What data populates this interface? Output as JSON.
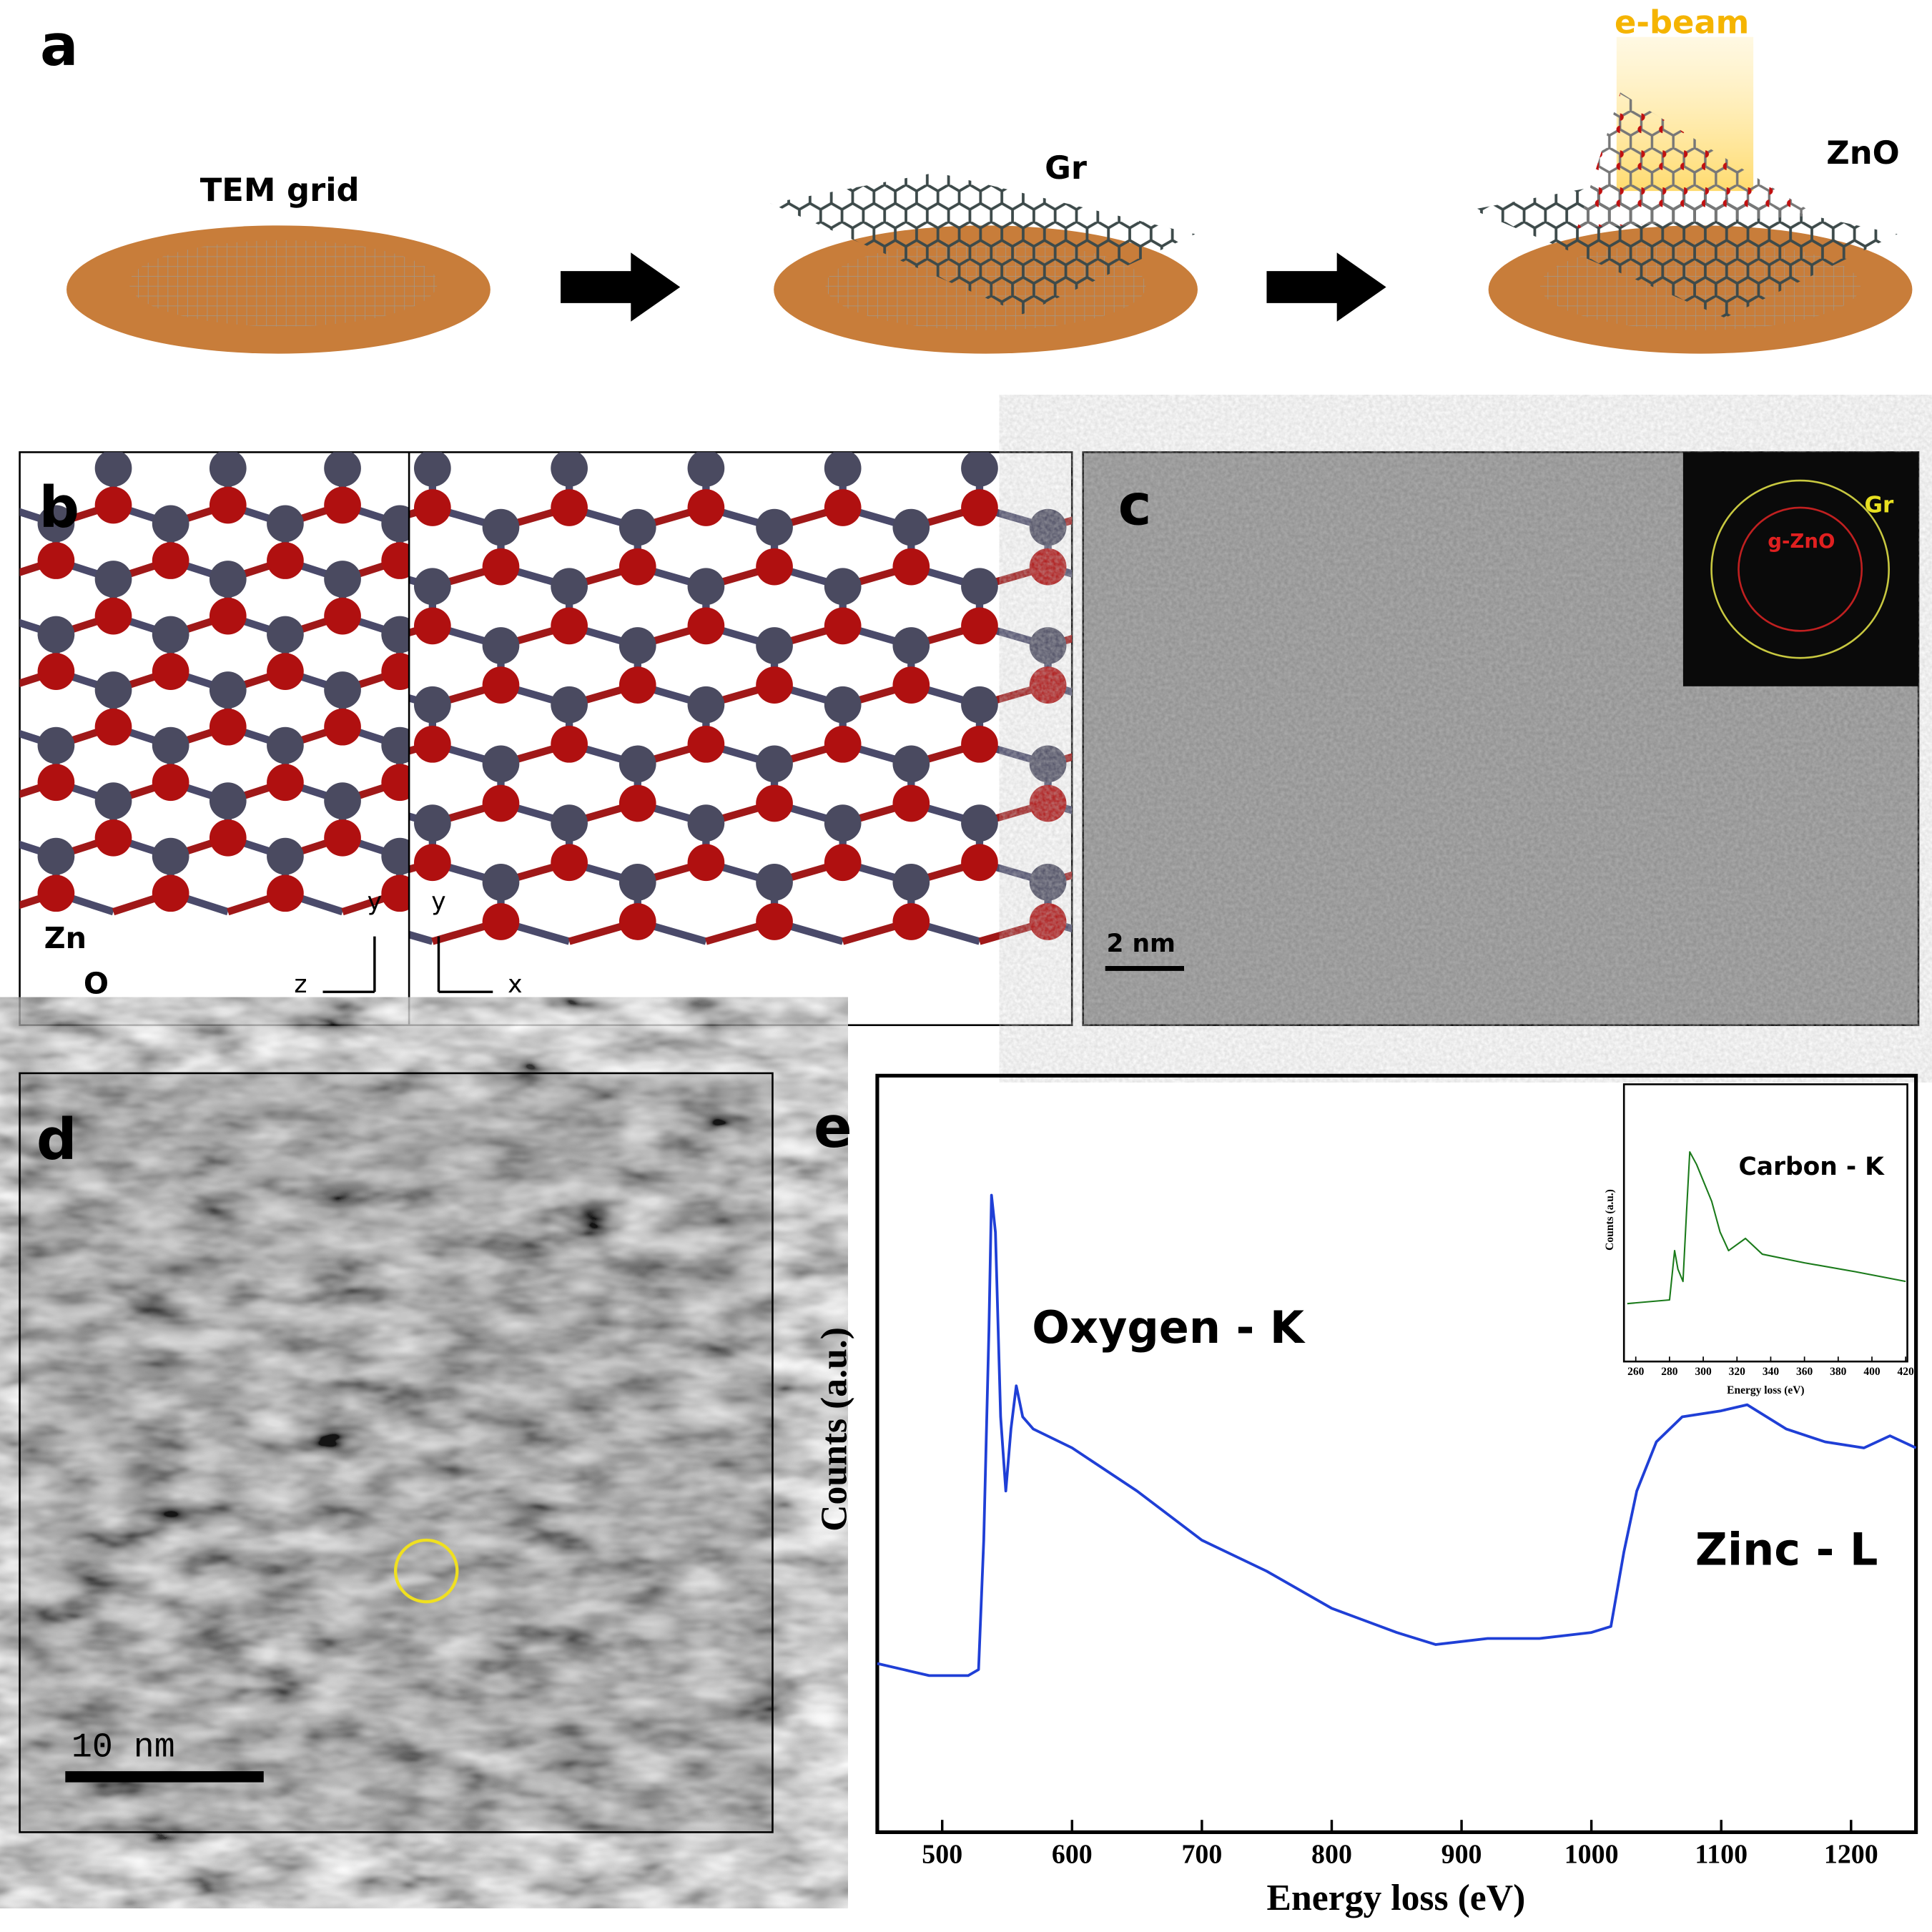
{
  "panel_a": {
    "label": "a",
    "tem_grid": "TEM grid",
    "gr": "Gr",
    "zno": "ZnO",
    "ebeam": "e-beam"
  },
  "panel_b": {
    "label": "b",
    "zn": "Zn",
    "o": "O",
    "axis_y_left": "y",
    "axis_z": "z",
    "axis_y_right": "y",
    "axis_x": "x"
  },
  "panel_c": {
    "label": "c",
    "inset_gr": "Gr",
    "inset_zno": "g-ZnO",
    "scale_bar": "2 nm"
  },
  "panel_d": {
    "label": "d",
    "scale_bar": "10 nm"
  },
  "panel_e": {
    "label": "e"
  },
  "chart_data": [
    {
      "type": "line",
      "x_label": "Energy loss (eV)",
      "y_label": "Counts (a.u.)",
      "annotations": [
        "Oxygen - K",
        "Zinc - L"
      ],
      "color": "#1f3fd6",
      "x": [
        450,
        470,
        490,
        520,
        528,
        532,
        536,
        538,
        541,
        545,
        549,
        553,
        557,
        562,
        570,
        600,
        650,
        700,
        750,
        800,
        850,
        880,
        920,
        960,
        1000,
        1015,
        1025,
        1035,
        1050,
        1070,
        1100,
        1120,
        1150,
        1180,
        1210,
        1230,
        1250
      ],
      "values": [
        22.3,
        21.5,
        20.7,
        20.7,
        21.5,
        38.6,
        66.3,
        84.2,
        79.3,
        54.9,
        45.1,
        53.3,
        59.0,
        54.9,
        53.3,
        50.8,
        45.1,
        38.6,
        34.5,
        29.6,
        26.4,
        24.8,
        25.6,
        25.6,
        26.4,
        27.2,
        37.0,
        45.1,
        51.6,
        54.9,
        55.7,
        56.5,
        53.3,
        51.6,
        50.8,
        52.4,
        50.8
      ],
      "xlim": [
        450,
        1250
      ],
      "xticks": [
        500,
        600,
        700,
        800,
        900,
        1000,
        1100,
        1200
      ],
      "ylim": [
        0,
        100
      ]
    },
    {
      "type": "line",
      "x_label": "Energy loss (eV)",
      "y_label": "Counts (a.u.)",
      "annotations": [
        "Carbon - K"
      ],
      "color": "#1a7a1a",
      "x": [
        255,
        280,
        283,
        285,
        288,
        290,
        292,
        296,
        305,
        310,
        315,
        325,
        335,
        360,
        390,
        420
      ],
      "values": [
        20.9,
        22.2,
        40.0,
        33.3,
        28.9,
        53.3,
        75.6,
        71.1,
        57.8,
        46.7,
        40.0,
        44.4,
        38.7,
        35.6,
        32.4,
        28.9
      ],
      "xlim": [
        253,
        421
      ],
      "xticks": [
        260,
        280,
        300,
        320,
        340,
        360,
        380,
        400,
        420
      ],
      "ylim": [
        0,
        100
      ]
    }
  ]
}
